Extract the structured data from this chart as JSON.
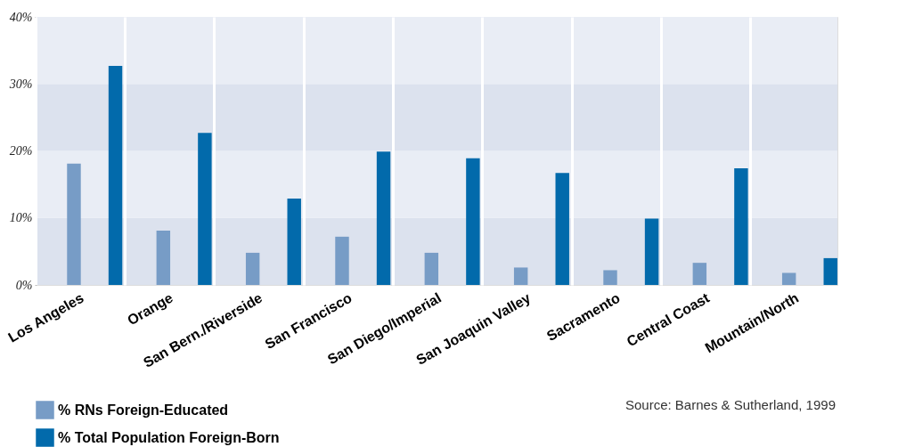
{
  "chart_data": {
    "type": "bar",
    "categories": [
      "Los Angeles",
      "Orange",
      "San Bern./Riverside",
      "San Francisco",
      "San Diego/Imperial",
      "San Joaquin Valley",
      "Sacramento",
      "Central Coast",
      "Mountain/North"
    ],
    "series": [
      {
        "name": "% RNs Foreign-Educated",
        "color": "#779cc6",
        "values": [
          18.1,
          8.1,
          4.8,
          7.2,
          4.8,
          2.6,
          2.2,
          3.3,
          1.8
        ]
      },
      {
        "name": "% Total Population Foreign-Born",
        "color": "#026aab",
        "values": [
          32.7,
          22.7,
          12.9,
          19.9,
          18.9,
          16.7,
          9.9,
          17.4,
          4.0
        ]
      }
    ],
    "ylim": [
      0,
      40
    ],
    "yticks": [
      {
        "value": 0,
        "label": "0%"
      },
      {
        "value": 10,
        "label": "10%"
      },
      {
        "value": 20,
        "label": "20%"
      },
      {
        "value": 30,
        "label": "30%"
      },
      {
        "value": 40,
        "label": "40%"
      }
    ],
    "grid": true,
    "legend": "bottom",
    "annotations": [
      "Source: Barnes & Sutherland, 1999"
    ]
  }
}
